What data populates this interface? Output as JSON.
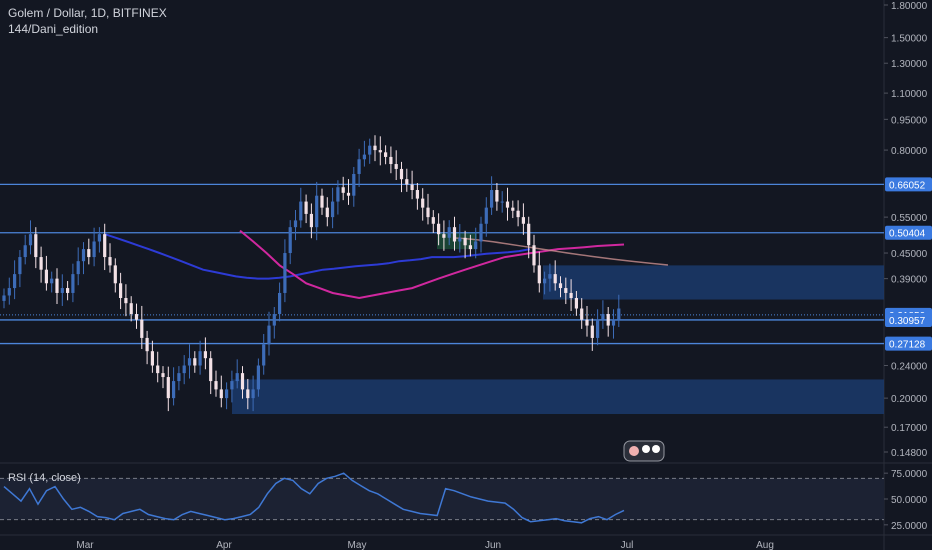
{
  "header": {
    "title": "Golem / Dollar, 1D, BITFINEX",
    "subtitle": "144/Dani_edition"
  },
  "rsi": {
    "title": "RSI (14, close)"
  },
  "colors": {
    "background": "#131722",
    "grid": "#1e2230",
    "axis_text": "#b2b5be",
    "up_candle": "#3d6cb8",
    "down_candle": "#f3e1e6",
    "level_line": "#4c85d9",
    "label_bg": "#3b7ae0",
    "zone_fill": "#1b3a6b",
    "ma_blue": "#2d3bd6",
    "ma_magenta": "#d0289f",
    "rsi_line": "#3f78d4"
  },
  "chart_data": {
    "type": "candlestick",
    "symbol": "Golem / Dollar",
    "timeframe": "1D",
    "exchange": "BITFINEX",
    "y_axis_scale": "log",
    "y_ticks": [
      "1.80000",
      "1.50000",
      "1.30000",
      "1.10000",
      "0.95000",
      "0.80000",
      "0.55000",
      "0.45000",
      "0.39000",
      "0.24000",
      "0.20000",
      "0.17000",
      "0.14800"
    ],
    "x_ticks": [
      "Mar",
      "Apr",
      "May",
      "Jun",
      "Jul",
      "Aug"
    ],
    "price_labels": [
      "0.66052",
      "0.50404",
      "0.31850",
      "0.30957",
      "0.27128"
    ],
    "horizontal_levels": [
      0.66052,
      0.50404,
      0.3185,
      0.30957,
      0.27128
    ],
    "rsi_ticks": [
      "75.0000",
      "50.0000",
      "25.0000"
    ],
    "rsi_bands": [
      70,
      30
    ],
    "zones": [
      {
        "name": "upper-supply-zone",
        "from_date": "2018-06-12",
        "to_date": "end",
        "low": 0.347,
        "high": 0.42
      },
      {
        "name": "lower-demand-zone",
        "from_date": "2018-04-01",
        "to_date": "end",
        "low": 0.183,
        "high": 0.222
      }
    ],
    "closes": [
      0.355,
      0.37,
      0.4,
      0.44,
      0.47,
      0.5,
      0.44,
      0.41,
      0.38,
      0.39,
      0.36,
      0.37,
      0.36,
      0.4,
      0.43,
      0.46,
      0.44,
      0.48,
      0.5,
      0.44,
      0.42,
      0.38,
      0.35,
      0.34,
      0.32,
      0.31,
      0.28,
      0.26,
      0.24,
      0.23,
      0.225,
      0.2,
      0.22,
      0.23,
      0.24,
      0.25,
      0.24,
      0.26,
      0.25,
      0.22,
      0.21,
      0.2,
      0.21,
      0.22,
      0.23,
      0.21,
      0.2,
      0.21,
      0.24,
      0.27,
      0.3,
      0.32,
      0.36,
      0.45,
      0.52,
      0.54,
      0.6,
      0.56,
      0.52,
      0.62,
      0.58,
      0.55,
      0.6,
      0.65,
      0.63,
      0.62,
      0.7,
      0.76,
      0.78,
      0.82,
      0.8,
      0.79,
      0.77,
      0.74,
      0.72,
      0.68,
      0.66,
      0.64,
      0.61,
      0.58,
      0.55,
      0.53,
      0.5,
      0.49,
      0.52,
      0.48,
      0.49,
      0.47,
      0.46,
      0.48,
      0.53,
      0.58,
      0.64,
      0.6,
      0.6,
      0.58,
      0.57,
      0.55,
      0.53,
      0.47,
      0.42,
      0.38,
      0.39,
      0.4,
      0.38,
      0.37,
      0.36,
      0.35,
      0.33,
      0.31,
      0.3,
      0.28,
      0.31,
      0.32,
      0.3,
      0.31,
      0.33
    ],
    "ma_blue": [
      0.5,
      0.49,
      0.48,
      0.47,
      0.46,
      0.45,
      0.44,
      0.43,
      0.42,
      0.41,
      0.405,
      0.4,
      0.395,
      0.392,
      0.39,
      0.39,
      0.392,
      0.395,
      0.4,
      0.405,
      0.41,
      0.412,
      0.415,
      0.418,
      0.42,
      0.422,
      0.425,
      0.43,
      0.432,
      0.435,
      0.44,
      0.44,
      0.44,
      0.442,
      0.445,
      0.448,
      0.45,
      0.452,
      0.455,
      0.46
    ],
    "ma_magenta": [
      0.51,
      0.48,
      0.45,
      0.42,
      0.4,
      0.38,
      0.37,
      0.36,
      0.355,
      0.35,
      0.355,
      0.36,
      0.365,
      0.37,
      0.38,
      0.39,
      0.4,
      0.41,
      0.42,
      0.43,
      0.44,
      0.445,
      0.45,
      0.455,
      0.46,
      0.462,
      0.465,
      0.468,
      0.47,
      0.472
    ],
    "rsi_values": [
      62,
      55,
      48,
      60,
      45,
      58,
      62,
      50,
      40,
      42,
      38,
      33,
      32,
      30,
      36,
      38,
      40,
      35,
      33,
      31,
      30,
      35,
      38,
      36,
      34,
      32,
      30,
      31,
      33,
      35,
      42,
      55,
      65,
      70,
      68,
      60,
      55,
      65,
      70,
      72,
      75,
      68,
      63,
      58,
      55,
      50,
      45,
      40,
      38,
      36,
      35,
      34,
      60,
      58,
      55,
      52,
      50,
      48,
      47,
      46,
      40,
      32,
      28,
      29,
      30,
      31,
      29,
      28,
      27,
      31,
      33,
      30,
      35,
      39
    ]
  }
}
